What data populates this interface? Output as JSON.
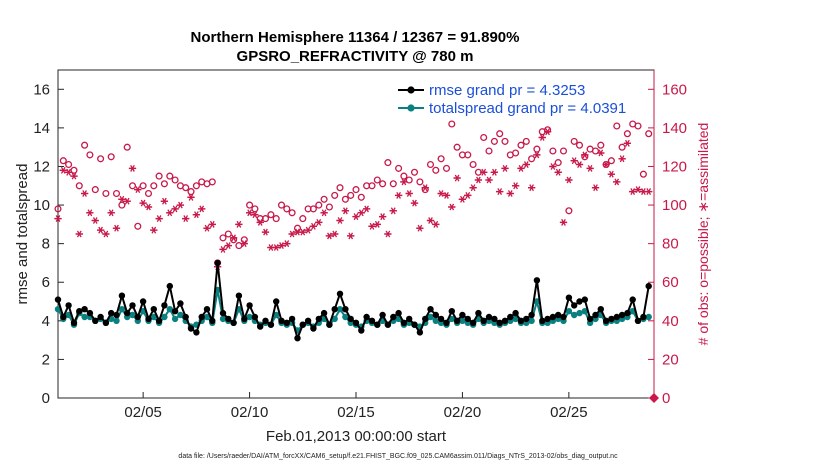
{
  "chart_data": {
    "type": "line",
    "title_line1": "Northern Hemisphere 11364 / 12367 = 91.890%",
    "title_line2": "GPSRO_REFRACTIVITY @ 780 m",
    "xlabel": "Feb.01,2013 00:00:00 start",
    "ylabel_left": "rmse and totalspread",
    "ylabel_right": "# of obs: o=possible; ∗=assimilated",
    "footer": "data file: /Users/raeder/DAI/ATM_forcXX/CAM6_setup/f.e21.FHIST_BGC.f09_025.CAM6assim.011/Diags_NTrS_2013-02/obs_diag_output.nc",
    "xlim": [
      1,
      29
    ],
    "ylim_left": [
      0,
      17
    ],
    "ylim_right": [
      0,
      170
    ],
    "x_ticks": [
      5,
      10,
      15,
      20,
      25
    ],
    "x_tick_labels": [
      "02/05",
      "02/10",
      "02/15",
      "02/20",
      "02/25"
    ],
    "y_ticks_left": [
      0,
      2,
      4,
      6,
      8,
      10,
      12,
      14,
      16
    ],
    "y_ticks_right": [
      0,
      20,
      40,
      60,
      80,
      100,
      120,
      140,
      160
    ],
    "legend": {
      "position": "top-right",
      "entries": [
        "rmse grand pr = 4.3253",
        "totalspread grand pr = 4.0391"
      ]
    },
    "colors": {
      "rmse": "#000000",
      "totalspread": "#0a8080",
      "obs": "#c8194a",
      "legend_text": "#1a4fd8"
    },
    "series": [
      {
        "name": "rmse",
        "axis": "left",
        "x": [
          1.0,
          1.25,
          1.5,
          1.75,
          2.0,
          2.25,
          2.5,
          2.75,
          3.0,
          3.25,
          3.5,
          3.75,
          4.0,
          4.25,
          4.5,
          4.75,
          5.0,
          5.25,
          5.5,
          5.75,
          6.0,
          6.25,
          6.5,
          6.75,
          7.0,
          7.25,
          7.5,
          7.75,
          8.0,
          8.25,
          8.5,
          8.75,
          9.0,
          9.25,
          9.5,
          9.75,
          10.0,
          10.25,
          10.5,
          10.75,
          11.0,
          11.25,
          11.5,
          11.75,
          12.0,
          12.25,
          12.5,
          12.75,
          13.0,
          13.25,
          13.5,
          13.75,
          14.0,
          14.25,
          14.5,
          14.75,
          15.0,
          15.25,
          15.5,
          15.75,
          16.0,
          16.25,
          16.5,
          16.75,
          17.0,
          17.25,
          17.5,
          17.75,
          18.0,
          18.25,
          18.5,
          18.75,
          19.0,
          19.25,
          19.5,
          19.75,
          20.0,
          20.25,
          20.5,
          20.75,
          21.0,
          21.25,
          21.5,
          21.75,
          22.0,
          22.25,
          22.5,
          22.75,
          23.0,
          23.25,
          23.5,
          23.75,
          24.0,
          24.25,
          24.5,
          24.75,
          25.0,
          25.25,
          25.5,
          25.75,
          26.0,
          26.25,
          26.5,
          26.75,
          27.0,
          27.25,
          27.5,
          27.75,
          28.0,
          28.25,
          28.5,
          28.75
        ],
        "values": [
          5.1,
          4.2,
          4.8,
          3.9,
          4.5,
          4.6,
          4.4,
          4.0,
          4.2,
          3.9,
          4.4,
          4.3,
          5.3,
          4.4,
          4.8,
          4.2,
          5.0,
          4.1,
          4.6,
          4.0,
          4.8,
          5.8,
          4.5,
          4.9,
          4.2,
          3.6,
          3.4,
          4.2,
          4.6,
          4.0,
          7.0,
          4.4,
          4.1,
          3.9,
          5.3,
          4.1,
          4.8,
          4.2,
          3.7,
          4.0,
          3.8,
          5.0,
          4.0,
          3.9,
          4.1,
          3.1,
          3.8,
          4.0,
          3.6,
          4.1,
          4.4,
          3.8,
          4.6,
          5.4,
          4.6,
          4.1,
          3.9,
          3.5,
          4.2,
          4.0,
          3.8,
          4.3,
          3.8,
          4.2,
          4.4,
          3.9,
          4.1,
          3.8,
          3.4,
          4.1,
          4.6,
          4.3,
          4.1,
          3.9,
          4.5,
          4.0,
          4.3,
          4.1,
          3.9,
          4.4,
          4.0,
          4.2,
          4.1,
          3.9,
          4.0,
          4.2,
          4.4,
          4.0,
          4.1,
          4.3,
          6.1,
          4.0,
          4.1,
          4.2,
          4.3,
          4.2,
          5.2,
          4.8,
          5.0,
          5.1,
          4.1,
          4.3,
          4.6,
          4.0,
          4.1,
          4.2,
          4.3,
          4.4,
          5.1,
          4.0,
          4.2,
          5.8
        ]
      },
      {
        "name": "totalspread",
        "axis": "left",
        "x": [
          1.0,
          1.25,
          1.5,
          1.75,
          2.0,
          2.25,
          2.5,
          2.75,
          3.0,
          3.25,
          3.5,
          3.75,
          4.0,
          4.25,
          4.5,
          4.75,
          5.0,
          5.25,
          5.5,
          5.75,
          6.0,
          6.25,
          6.5,
          6.75,
          7.0,
          7.25,
          7.5,
          7.75,
          8.0,
          8.25,
          8.5,
          8.75,
          9.0,
          9.25,
          9.5,
          9.75,
          10.0,
          10.25,
          10.5,
          10.75,
          11.0,
          11.25,
          11.5,
          11.75,
          12.0,
          12.25,
          12.5,
          12.75,
          13.0,
          13.25,
          13.5,
          13.75,
          14.0,
          14.25,
          14.5,
          14.75,
          15.0,
          15.25,
          15.5,
          15.75,
          16.0,
          16.25,
          16.5,
          16.75,
          17.0,
          17.25,
          17.5,
          17.75,
          18.0,
          18.25,
          18.5,
          18.75,
          19.0,
          19.25,
          19.5,
          19.75,
          20.0,
          20.25,
          20.5,
          20.75,
          21.0,
          21.25,
          21.5,
          21.75,
          22.0,
          22.25,
          22.5,
          22.75,
          23.0,
          23.25,
          23.5,
          23.75,
          24.0,
          24.25,
          24.5,
          24.75,
          25.0,
          25.25,
          25.5,
          25.75,
          26.0,
          26.25,
          26.5,
          26.75,
          27.0,
          27.25,
          27.5,
          27.75,
          28.0,
          28.25,
          28.5,
          28.75
        ],
        "values": [
          4.6,
          4.1,
          4.3,
          3.8,
          4.4,
          4.2,
          4.2,
          4.0,
          4.1,
          3.9,
          4.1,
          4.0,
          4.6,
          4.2,
          4.3,
          4.0,
          4.5,
          4.0,
          4.2,
          3.9,
          4.2,
          4.6,
          4.1,
          4.3,
          4.0,
          3.7,
          3.8,
          4.0,
          4.2,
          3.9,
          5.6,
          4.1,
          4.0,
          3.9,
          4.6,
          4.0,
          4.2,
          4.0,
          3.8,
          3.9,
          3.8,
          4.3,
          3.9,
          3.8,
          3.9,
          3.5,
          3.8,
          3.9,
          3.7,
          3.9,
          4.1,
          3.8,
          4.1,
          4.6,
          4.2,
          3.9,
          3.8,
          3.7,
          4.0,
          3.9,
          3.8,
          4.0,
          3.8,
          4.0,
          4.1,
          3.8,
          3.9,
          3.8,
          3.7,
          3.9,
          4.2,
          4.0,
          3.9,
          3.8,
          4.1,
          3.9,
          4.0,
          3.9,
          3.8,
          4.1,
          3.9,
          4.0,
          3.9,
          3.8,
          3.9,
          4.0,
          4.1,
          3.9,
          3.9,
          4.0,
          5.0,
          3.9,
          3.9,
          4.0,
          4.1,
          4.0,
          4.5,
          4.3,
          4.4,
          4.5,
          3.9,
          4.1,
          4.3,
          3.9,
          4.0,
          4.0,
          4.1,
          4.2,
          4.5,
          4.0,
          4.1,
          4.2
        ]
      },
      {
        "name": "obs possible",
        "axis": "right",
        "x": [
          1.0,
          1.25,
          1.5,
          1.75,
          2.0,
          2.25,
          2.5,
          2.75,
          3.0,
          3.25,
          3.5,
          3.75,
          4.0,
          4.25,
          4.5,
          4.75,
          5.0,
          5.25,
          5.5,
          5.75,
          6.0,
          6.25,
          6.5,
          6.75,
          7.0,
          7.25,
          7.5,
          7.75,
          8.0,
          8.25,
          8.5,
          8.75,
          9.0,
          9.25,
          9.5,
          9.75,
          10.0,
          10.25,
          10.5,
          10.75,
          11.0,
          11.25,
          11.5,
          11.75,
          12.0,
          12.25,
          12.5,
          12.75,
          13.0,
          13.25,
          13.5,
          13.75,
          14.0,
          14.25,
          14.5,
          14.75,
          15.0,
          15.25,
          15.5,
          15.75,
          16.0,
          16.25,
          16.5,
          16.75,
          17.0,
          17.25,
          17.5,
          17.75,
          18.0,
          18.25,
          18.5,
          18.75,
          19.0,
          19.25,
          19.5,
          19.75,
          20.0,
          20.25,
          20.5,
          20.75,
          21.0,
          21.25,
          21.5,
          21.75,
          22.0,
          22.25,
          22.5,
          22.75,
          23.0,
          23.25,
          23.5,
          23.75,
          24.0,
          24.25,
          24.5,
          24.75,
          25.0,
          25.25,
          25.5,
          25.75,
          26.0,
          26.25,
          26.5,
          26.75,
          27.0,
          27.25,
          27.5,
          27.75,
          28.0,
          28.25,
          28.5,
          28.75
        ],
        "values": [
          98,
          123,
          121,
          118,
          110,
          131,
          126,
          108,
          124,
          106,
          125,
          106,
          100,
          130,
          110,
          89,
          110,
          106,
          110,
          115,
          111,
          115,
          113,
          110,
          109,
          107,
          110,
          112,
          111,
          112,
          70,
          83,
          85,
          82,
          79,
          82,
          100,
          98,
          93,
          93,
          95,
          93,
          100,
          98,
          96,
          88,
          93,
          98,
          98,
          100,
          103,
          99,
          105,
          109,
          103,
          105,
          108,
          104,
          110,
          110,
          113,
          111,
          122,
          111,
          119,
          115,
          113,
          117,
          112,
          108,
          121,
          118,
          124,
          119,
          142,
          130,
          126,
          126,
          121,
          117,
          135,
          128,
          133,
          137,
          133,
          126,
          127,
          131,
          133,
          124,
          129,
          138,
          139,
          128,
          122,
          128,
          97,
          133,
          131,
          125,
          129,
          128,
          131,
          121,
          123,
          141,
          130,
          137,
          142,
          141,
          116,
          137
        ]
      },
      {
        "name": "obs assimilated",
        "axis": "right",
        "x": [
          1.0,
          1.25,
          1.5,
          1.75,
          2.0,
          2.25,
          2.5,
          2.75,
          3.0,
          3.25,
          3.5,
          3.75,
          4.0,
          4.25,
          4.5,
          4.75,
          5.0,
          5.25,
          5.5,
          5.75,
          6.0,
          6.25,
          6.5,
          6.75,
          7.0,
          7.25,
          7.5,
          7.75,
          8.0,
          8.25,
          8.5,
          8.75,
          9.0,
          9.25,
          9.5,
          9.75,
          10.0,
          10.25,
          10.5,
          10.75,
          11.0,
          11.25,
          11.5,
          11.75,
          12.0,
          12.25,
          12.5,
          12.75,
          13.0,
          13.25,
          13.5,
          13.75,
          14.0,
          14.25,
          14.5,
          14.75,
          15.0,
          15.25,
          15.5,
          15.75,
          16.0,
          16.25,
          16.5,
          16.75,
          17.0,
          17.25,
          17.5,
          17.75,
          18.0,
          18.25,
          18.5,
          18.75,
          19.0,
          19.25,
          19.5,
          19.75,
          20.0,
          20.25,
          20.5,
          20.75,
          21.0,
          21.25,
          21.5,
          21.75,
          22.0,
          22.25,
          22.5,
          22.75,
          23.0,
          23.25,
          23.5,
          23.75,
          24.0,
          24.25,
          24.5,
          24.75,
          25.0,
          25.25,
          25.5,
          25.75,
          26.0,
          26.25,
          26.5,
          26.75,
          27.0,
          27.25,
          27.5,
          27.75,
          28.0,
          28.25,
          28.5,
          28.75
        ],
        "values": [
          93,
          118,
          117,
          115,
          85,
          106,
          96,
          92,
          87,
          85,
          96,
          88,
          103,
          102,
          119,
          108,
          101,
          99,
          87,
          93,
          102,
          96,
          98,
          100,
          93,
          104,
          95,
          98,
          88,
          90,
          68,
          77,
          79,
          83,
          90,
          80,
          96,
          95,
          91,
          86,
          78,
          78,
          79,
          80,
          85,
          86,
          86,
          87,
          89,
          91,
          96,
          84,
          85,
          92,
          97,
          84,
          94,
          96,
          98,
          89,
          90,
          94,
          85,
          97,
          105,
          112,
          106,
          101,
          88,
          109,
          92,
          90,
          106,
          105,
          99,
          114,
          103,
          105,
          109,
          113,
          117,
          113,
          117,
          107,
          119,
          106,
          110,
          119,
          121,
          109,
          126,
          135,
          138,
          120,
          117,
          91,
          113,
          123,
          121,
          126,
          119,
          109,
          127,
          121,
          116,
          112,
          124,
          132,
          107,
          108,
          107,
          107
        ]
      }
    ],
    "marker_note": "rmse: filled black circle line; totalspread: filled teal circle line; possible: open crimson circles; assimilated: crimson asterisks",
    "extra_marker": {
      "x": 29,
      "y_right": 0,
      "desc": "crimson diamond at right axis origin"
    }
  }
}
